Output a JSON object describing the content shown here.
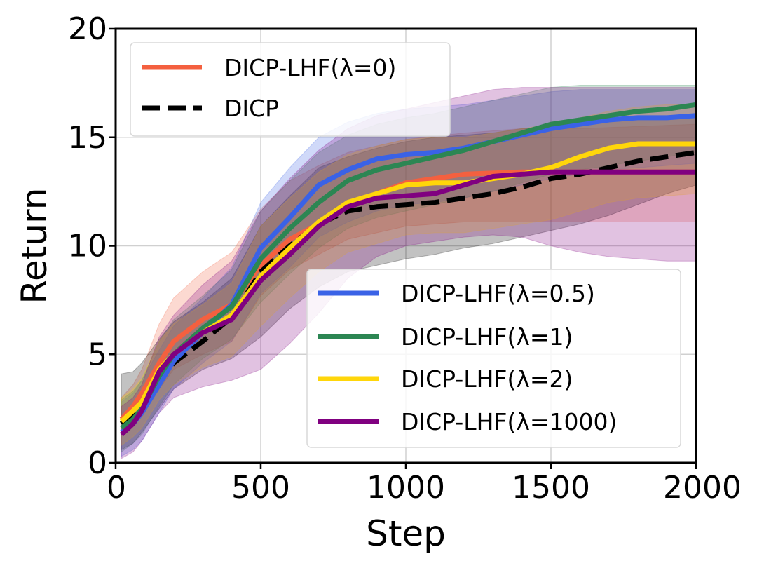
{
  "chart_data": {
    "type": "line",
    "xlabel": "Step",
    "ylabel": "Return",
    "xlim": [
      0,
      2000
    ],
    "ylim": [
      0,
      20
    ],
    "xticks": [
      "0",
      "500",
      "1000",
      "1500",
      "2000"
    ],
    "yticks": [
      "0",
      "5",
      "10",
      "15",
      "20"
    ],
    "grid": true,
    "legends": [
      {
        "placement": "upper-left",
        "entries": [
          "DICP-LHF(λ=0)",
          "DICP"
        ]
      },
      {
        "placement": "lower-right",
        "entries": [
          "DICP-LHF(λ=0.5)",
          "DICP-LHF(λ=1)",
          "DICP-LHF(λ=2)",
          "DICP-LHF(λ=1000)"
        ]
      }
    ],
    "series": [
      {
        "name": "DICP-LHF(λ=0)",
        "color": "#f4603f",
        "dashed": false,
        "x": [
          20,
          60,
          90,
          150,
          200,
          300,
          400,
          500,
          600,
          700,
          800,
          900,
          1000,
          1200,
          1400,
          1600,
          1800,
          2000
        ],
        "y": [
          2.0,
          2.6,
          3.2,
          4.6,
          5.6,
          6.6,
          7.3,
          9.1,
          10.3,
          11.0,
          11.8,
          12.4,
          12.9,
          13.3,
          13.4,
          13.4,
          13.4,
          13.4
        ],
        "lower": [
          1.3,
          1.9,
          2.3,
          3.4,
          4.3,
          5.0,
          5.6,
          7.7,
          8.9,
          9.6,
          10.3,
          10.6,
          10.9,
          11.1,
          11.1,
          11.1,
          11.1,
          11.1
        ],
        "upper": [
          3.0,
          3.6,
          4.3,
          6.4,
          7.6,
          8.8,
          9.7,
          11.7,
          13.0,
          13.7,
          14.3,
          14.6,
          14.9,
          15.2,
          15.4,
          15.4,
          15.5,
          15.6
        ]
      },
      {
        "name": "DICP",
        "color": "#000000",
        "dashed": true,
        "x": [
          20,
          60,
          90,
          150,
          200,
          300,
          400,
          500,
          600,
          700,
          800,
          900,
          1000,
          1100,
          1200,
          1300,
          1400,
          1500,
          1600,
          1700,
          1800,
          1900,
          2000
        ],
        "y": [
          1.8,
          2.3,
          2.8,
          3.8,
          4.6,
          5.6,
          6.7,
          8.8,
          10.0,
          11.0,
          11.6,
          11.8,
          11.9,
          12.0,
          12.2,
          12.4,
          12.7,
          13.1,
          13.3,
          13.6,
          13.9,
          14.1,
          14.3
        ],
        "lower": [
          0.6,
          0.9,
          1.4,
          2.5,
          3.4,
          4.3,
          4.8,
          5.8,
          7.1,
          8.1,
          8.8,
          9.1,
          9.4,
          9.6,
          9.9,
          10.1,
          10.4,
          10.7,
          11.0,
          11.4,
          11.9,
          12.4,
          12.8
        ],
        "upper": [
          4.1,
          4.2,
          4.6,
          5.7,
          6.5,
          7.4,
          8.5,
          10.9,
          12.3,
          13.6,
          14.1,
          14.5,
          14.8,
          15.0,
          15.1,
          15.2,
          15.4,
          15.5,
          15.6,
          15.8,
          15.9,
          15.9,
          16.0
        ]
      },
      {
        "name": "DICP-LHF(λ=0.5)",
        "color": "#3a62e6",
        "dashed": false,
        "x": [
          20,
          60,
          90,
          150,
          200,
          300,
          400,
          500,
          600,
          700,
          800,
          900,
          1000,
          1100,
          1200,
          1300,
          1400,
          1500,
          1600,
          1700,
          1800,
          1900,
          2000
        ],
        "y": [
          1.4,
          1.8,
          2.3,
          3.6,
          4.7,
          6.0,
          7.3,
          9.9,
          11.3,
          12.8,
          13.5,
          14.0,
          14.2,
          14.3,
          14.5,
          14.8,
          15.1,
          15.4,
          15.6,
          15.8,
          15.9,
          15.9,
          16.0
        ],
        "lower": [
          0.3,
          0.6,
          1.0,
          2.3,
          3.4,
          4.6,
          5.6,
          7.8,
          9.0,
          10.4,
          11.1,
          11.6,
          11.9,
          12.0,
          12.2,
          12.5,
          12.8,
          13.1,
          13.3,
          13.5,
          13.6,
          13.7,
          13.8
        ],
        "upper": [
          2.8,
          3.2,
          3.8,
          5.2,
          6.3,
          7.6,
          9.0,
          12.0,
          13.6,
          15.0,
          15.7,
          16.1,
          16.3,
          16.4,
          16.5,
          16.7,
          16.9,
          17.1,
          17.2,
          17.2,
          17.2,
          17.2,
          17.2
        ]
      },
      {
        "name": "DICP-LHF(λ=1)",
        "color": "#2c8653",
        "dashed": false,
        "x": [
          20,
          60,
          90,
          150,
          200,
          300,
          400,
          500,
          600,
          700,
          800,
          900,
          1000,
          1100,
          1200,
          1300,
          1400,
          1500,
          1600,
          1700,
          1800,
          1900,
          2000
        ],
        "y": [
          1.6,
          2.0,
          2.5,
          4.0,
          5.0,
          6.2,
          7.2,
          9.4,
          10.8,
          12.0,
          13.0,
          13.5,
          13.8,
          14.1,
          14.4,
          14.8,
          15.2,
          15.6,
          15.8,
          16.0,
          16.2,
          16.3,
          16.5
        ],
        "lower": [
          0.5,
          0.9,
          1.3,
          2.6,
          3.6,
          4.8,
          5.7,
          7.4,
          8.7,
          9.9,
          10.8,
          11.3,
          11.6,
          11.9,
          12.2,
          12.5,
          12.9,
          13.3,
          13.5,
          13.7,
          13.9,
          14.1,
          14.3
        ],
        "upper": [
          2.9,
          3.3,
          3.8,
          5.6,
          6.6,
          7.7,
          8.9,
          11.6,
          13.0,
          14.3,
          15.1,
          15.6,
          15.9,
          16.1,
          16.4,
          16.7,
          17.0,
          17.3,
          17.4,
          17.4,
          17.4,
          17.4,
          17.4
        ]
      },
      {
        "name": "DICP-LHF(λ=2)",
        "color": "#ffd60a",
        "dashed": false,
        "x": [
          20,
          60,
          90,
          150,
          200,
          300,
          400,
          500,
          600,
          700,
          800,
          900,
          1000,
          1100,
          1200,
          1300,
          1400,
          1500,
          1600,
          1700,
          1800,
          1900,
          2000
        ],
        "y": [
          1.9,
          2.4,
          2.8,
          4.3,
          5.0,
          6.0,
          6.8,
          8.6,
          9.9,
          11.1,
          12.0,
          12.4,
          12.8,
          12.9,
          12.9,
          13.1,
          13.3,
          13.6,
          14.1,
          14.5,
          14.7,
          14.7,
          14.7
        ],
        "lower": [
          0.8,
          1.2,
          1.6,
          2.9,
          3.6,
          4.4,
          4.9,
          6.3,
          7.6,
          8.8,
          9.7,
          10.1,
          10.5,
          10.6,
          10.6,
          10.8,
          11.0,
          11.2,
          11.6,
          12.0,
          12.2,
          12.3,
          12.4
        ],
        "upper": [
          3.0,
          3.4,
          3.9,
          5.6,
          6.4,
          7.3,
          8.3,
          10.9,
          12.2,
          13.4,
          14.2,
          14.6,
          14.9,
          15.0,
          15.0,
          15.2,
          15.4,
          15.6,
          15.9,
          16.2,
          16.4,
          16.5,
          16.5
        ]
      },
      {
        "name": "DICP-LHF(λ=1000)",
        "color": "#800080",
        "dashed": false,
        "x": [
          20,
          60,
          90,
          150,
          200,
          300,
          400,
          500,
          600,
          700,
          800,
          900,
          1000,
          1100,
          1200,
          1300,
          1400,
          1500,
          1600,
          1700,
          1800,
          1900,
          2000
        ],
        "y": [
          1.3,
          1.8,
          2.4,
          4.2,
          5.0,
          6.0,
          6.6,
          8.4,
          9.6,
          10.9,
          11.8,
          12.2,
          12.3,
          12.4,
          12.8,
          13.2,
          13.3,
          13.4,
          13.4,
          13.4,
          13.4,
          13.4,
          13.4
        ],
        "lower": [
          0.2,
          0.5,
          1.0,
          2.3,
          3.0,
          3.5,
          3.8,
          4.3,
          5.5,
          6.9,
          8.5,
          9.5,
          10.0,
          10.2,
          10.4,
          10.5,
          10.4,
          10.0,
          9.7,
          9.5,
          9.4,
          9.3,
          9.3
        ],
        "upper": [
          2.6,
          3.0,
          3.6,
          5.8,
          6.8,
          8.2,
          9.3,
          11.6,
          13.1,
          14.4,
          15.4,
          16.0,
          16.3,
          16.6,
          16.9,
          17.2,
          17.3,
          17.3,
          17.3,
          17.3,
          17.3,
          17.3,
          17.3
        ]
      }
    ]
  }
}
